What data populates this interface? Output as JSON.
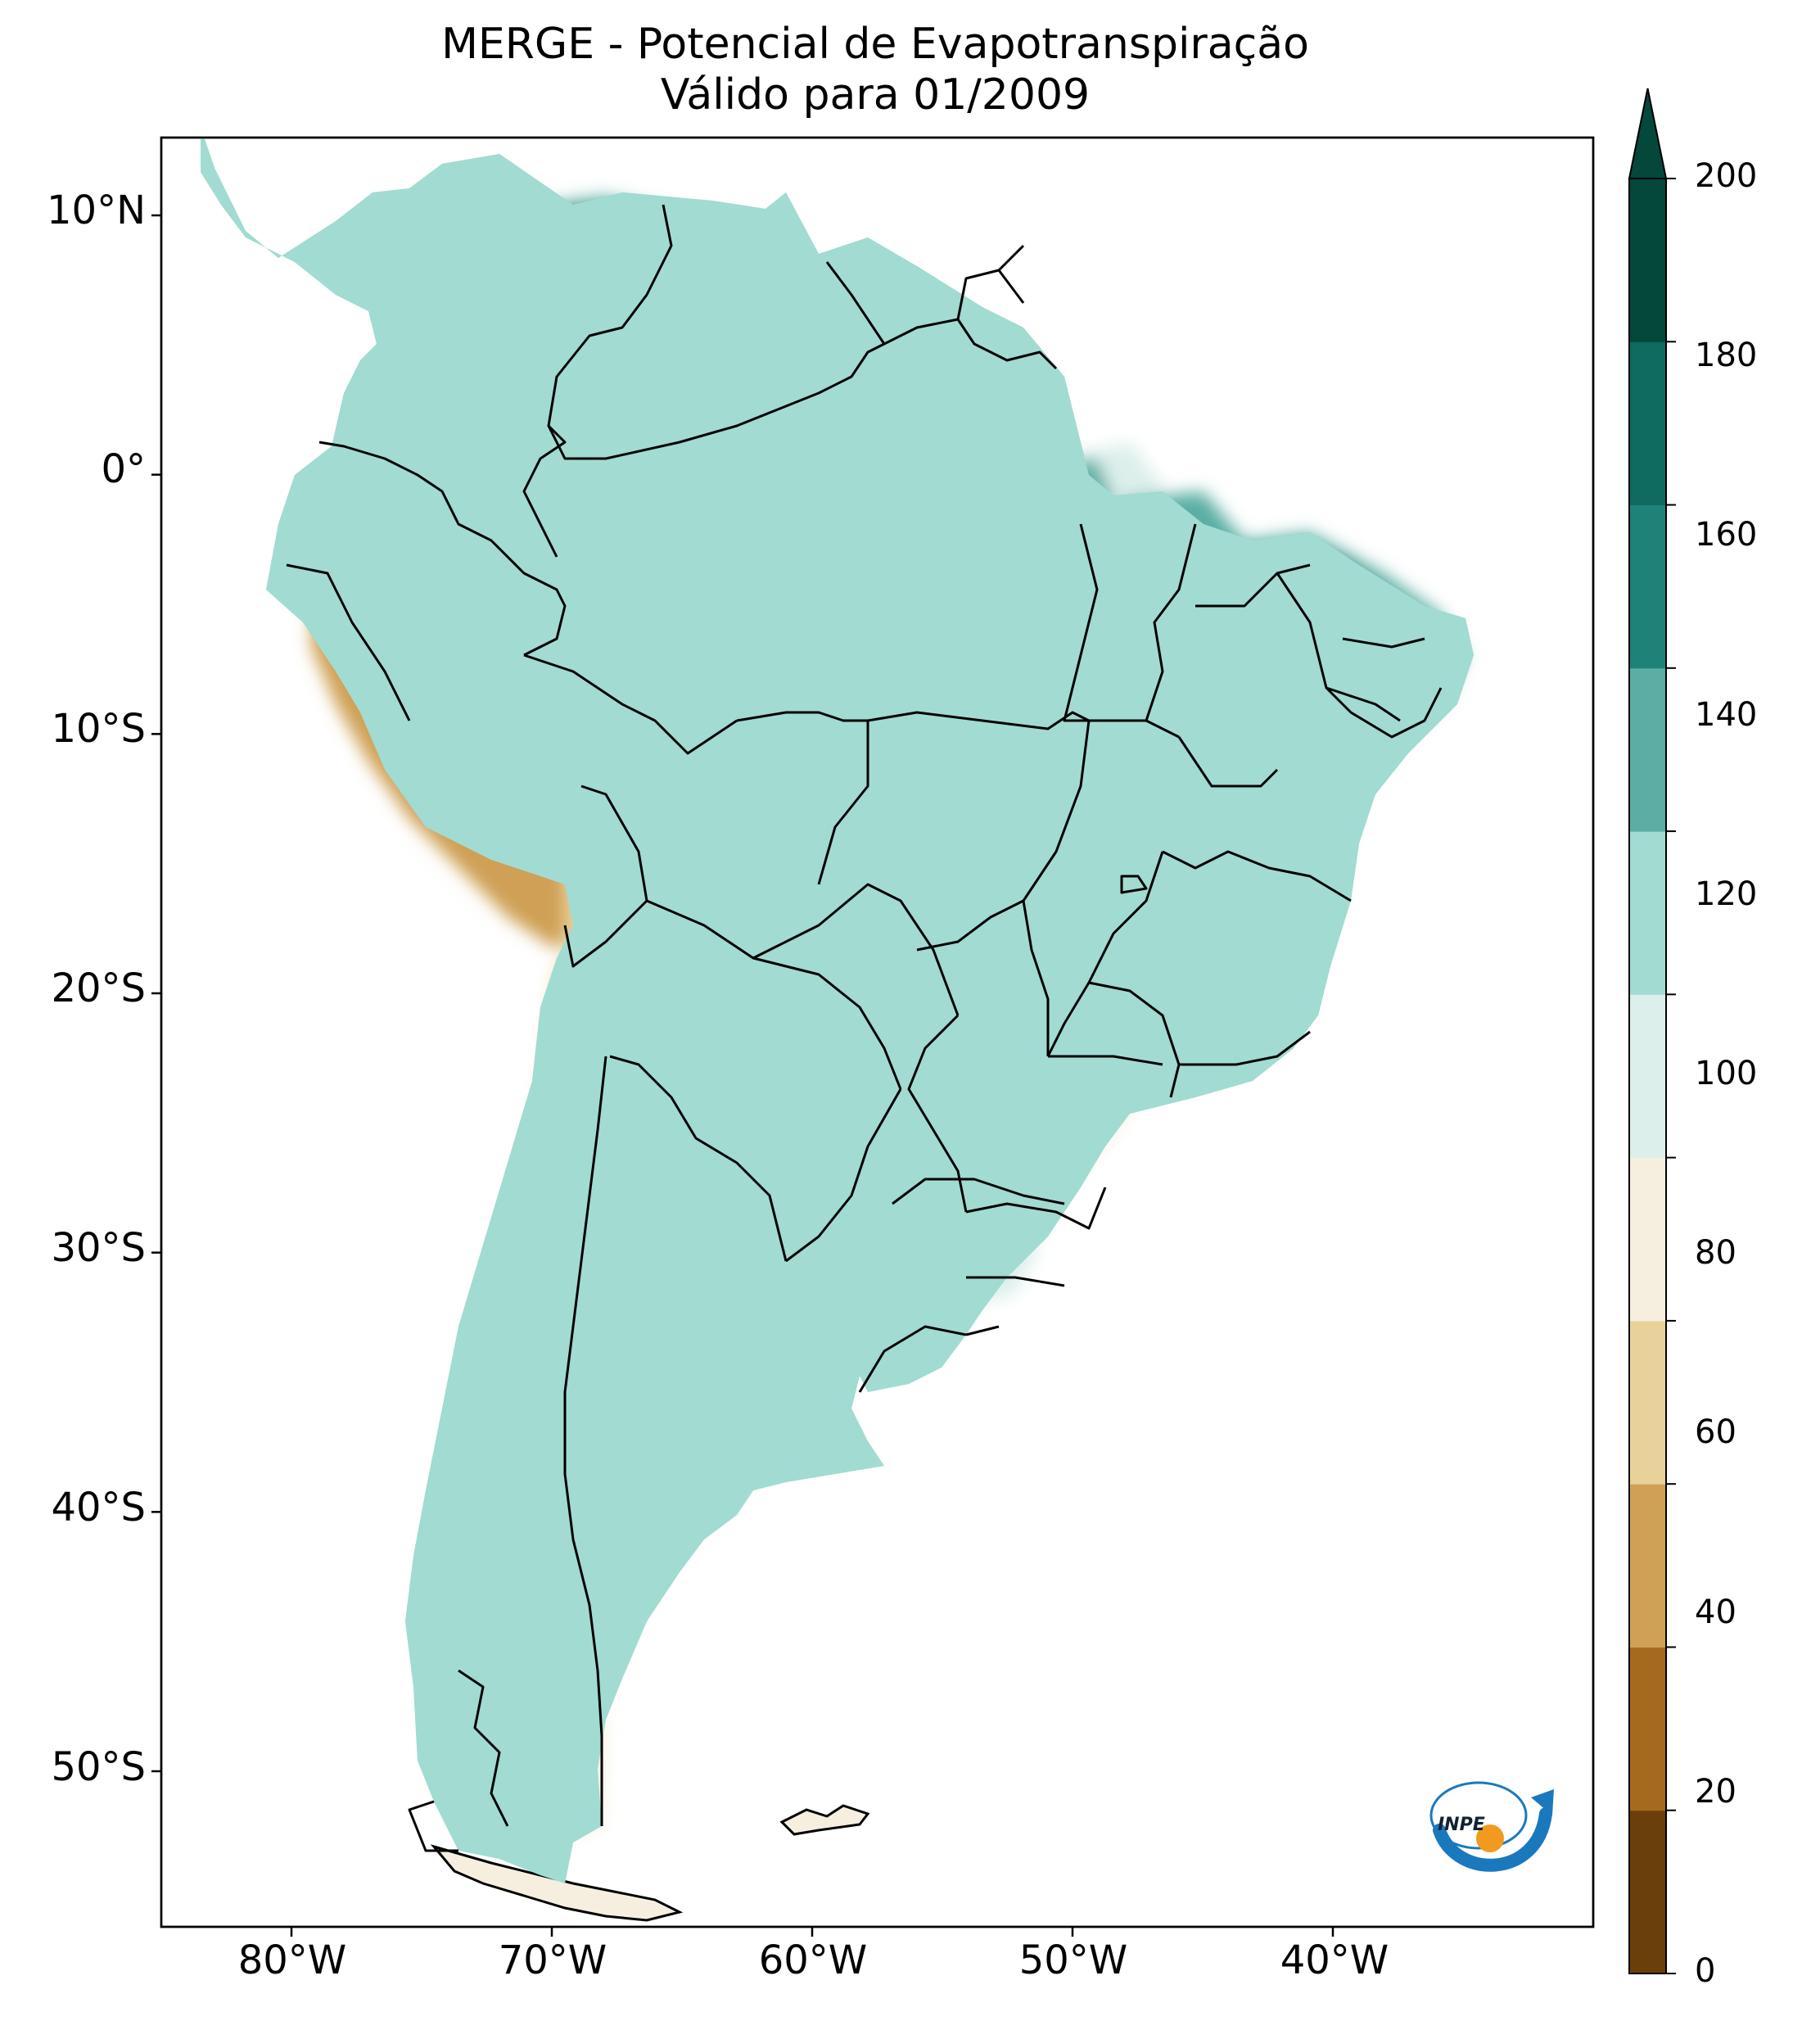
{
  "title": {
    "line1": "MERGE - Potencial de Evapotranspiração",
    "line2": "Válido para 01/2009"
  },
  "axes": {
    "lat_ticks": [
      "10°N",
      "0°",
      "10°S",
      "20°S",
      "30°S",
      "40°S",
      "50°S"
    ],
    "lon_ticks": [
      "80°W",
      "70°W",
      "60°W",
      "50°W",
      "40°W"
    ],
    "lat_range": [
      -56,
      13
    ],
    "lon_range": [
      -85,
      -30
    ]
  },
  "colorbar": {
    "levels": [
      "0",
      "20",
      "40",
      "60",
      "80",
      "100",
      "120",
      "140",
      "160",
      "180",
      "200"
    ],
    "colors": [
      "#6b3f0b",
      "#a66a1f",
      "#cfa055",
      "#e8d29a",
      "#f6efe0",
      "#dcefeb",
      "#a2dbd1",
      "#5aaea3",
      "#1f8279",
      "#0f6a5f",
      "#04473b"
    ],
    "extend": "max"
  },
  "logo": {
    "text": "INPE",
    "blue": "#1a79bd",
    "orange": "#f29a1e"
  }
}
